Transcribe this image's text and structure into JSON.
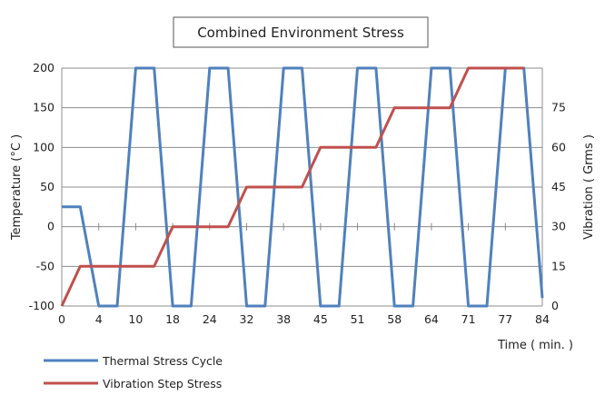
{
  "chart_data": {
    "type": "line",
    "title": "Combined Environment Stress",
    "xlabel": "Time ( min. )",
    "ylabel": "Temperature (°C )",
    "y2label": "Vibration ( Grms )",
    "x_categories": [
      0,
      4,
      10,
      18,
      24,
      32,
      38,
      45,
      51,
      58,
      64,
      71,
      77,
      84
    ],
    "ylim": [
      -100,
      200
    ],
    "y_ticks": [
      -100,
      -50,
      0,
      50,
      100,
      150,
      200
    ],
    "y2lim": [
      0,
      90
    ],
    "y2_ticks": [
      0,
      15,
      30,
      45,
      60,
      75
    ],
    "grid": true,
    "legend_position": "bottom-left",
    "series": [
      {
        "name": "Thermal Stress Cycle",
        "axis": "left",
        "color": "#4f81bd",
        "points": [
          [
            0,
            25
          ],
          [
            2,
            25
          ],
          [
            4,
            -100
          ],
          [
            7,
            -100
          ],
          [
            10,
            200
          ],
          [
            14,
            200
          ],
          [
            18,
            -100
          ],
          [
            21,
            -100
          ],
          [
            24,
            200
          ],
          [
            28,
            200
          ],
          [
            32,
            -100
          ],
          [
            35,
            -100
          ],
          [
            38,
            200
          ],
          [
            41.5,
            200
          ],
          [
            45,
            -100
          ],
          [
            48,
            -100
          ],
          [
            51,
            200
          ],
          [
            54.5,
            200
          ],
          [
            58,
            -100
          ],
          [
            61,
            -100
          ],
          [
            64,
            200
          ],
          [
            67.5,
            200
          ],
          [
            71,
            -100
          ],
          [
            74,
            -100
          ],
          [
            77,
            200
          ],
          [
            80.5,
            200
          ],
          [
            84,
            -90
          ]
        ]
      },
      {
        "name": "Vibration Step Stress",
        "axis": "right",
        "color": "#c0504d",
        "points": [
          [
            0,
            0
          ],
          [
            2,
            15
          ],
          [
            14,
            15
          ],
          [
            18,
            30
          ],
          [
            28,
            30
          ],
          [
            32,
            45
          ],
          [
            41.5,
            45
          ],
          [
            45,
            60
          ],
          [
            54.5,
            60
          ],
          [
            58,
            75
          ],
          [
            67.5,
            75
          ],
          [
            71,
            90
          ],
          [
            80.5,
            90
          ]
        ]
      }
    ]
  }
}
